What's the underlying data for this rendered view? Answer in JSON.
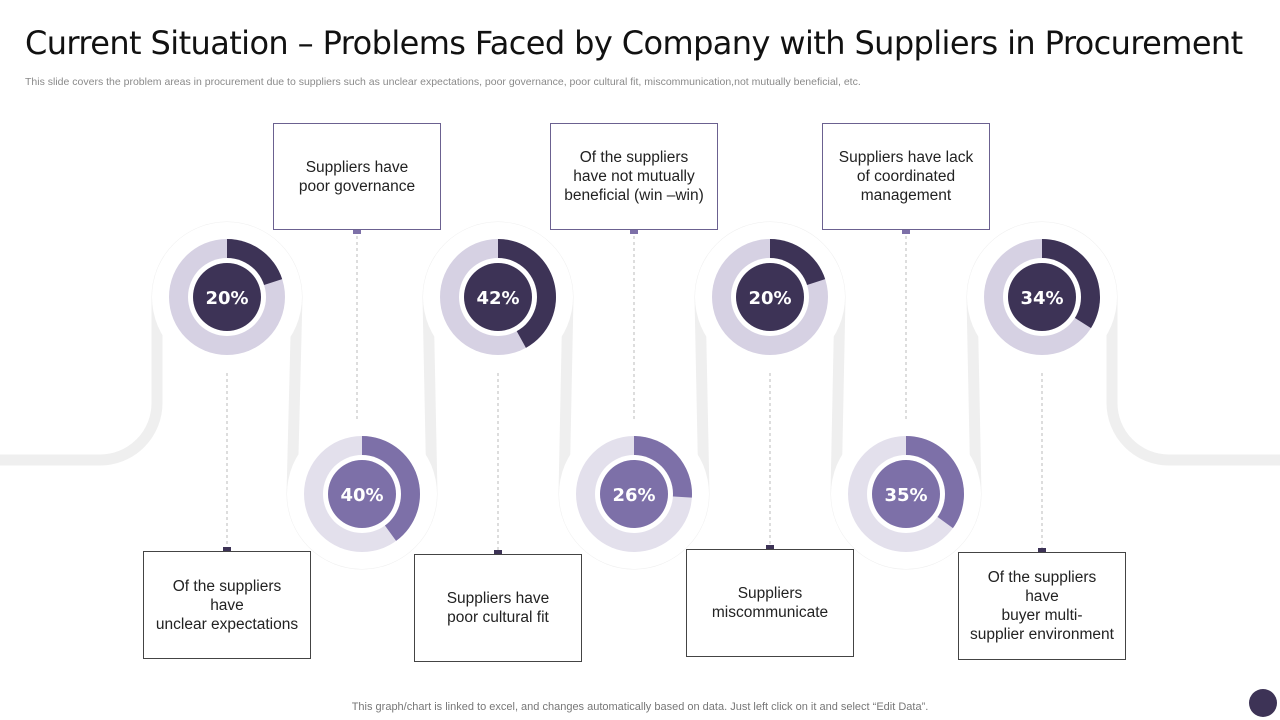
{
  "header": {
    "title": "Current Situation – Problems Faced by Company with Suppliers in Procurement",
    "subtitle": "This slide covers the problem areas in procurement due to suppliers such as unclear expectations, poor governance, poor cultural fit, miscommunication,not mutually beneficial, etc."
  },
  "colors": {
    "dark": "#3d3356",
    "medium": "#7d70a8",
    "light": "#d6d1e3",
    "lighter": "#e3e0ec",
    "track": "#efefef",
    "connector": "#bbbbbb"
  },
  "chart_data": {
    "type": "pie",
    "subtype": "donut",
    "items": [
      {
        "label": "Of the suppliers have unclear expectations",
        "value": 20,
        "display": "20%"
      },
      {
        "label": "Of the suppliers have buyer multi-supplier environment",
        "value": 40,
        "display": "40%"
      },
      {
        "label": "Suppliers have poor governance",
        "value": 42,
        "display": "42%"
      },
      {
        "label": "Suppliers have poor cultural fit",
        "value": 26,
        "display": "26%"
      },
      {
        "label": "Of the suppliers have not mutually beneficial (win –win)",
        "value": 20,
        "display": "20%"
      },
      {
        "label": "Suppliers miscommunicate",
        "value": 35,
        "display": "35%"
      },
      {
        "label": "Suppliers have lack of coordinated management",
        "value": 34,
        "display": "34%"
      }
    ]
  },
  "boxes": {
    "b1": "Suppliers have\npoor governance",
    "b2": "Of the suppliers\nhave not mutually\nbeneficial (win –win)",
    "b3": "Suppliers have lack\nof coordinated\nmanagement",
    "b4": "Of the suppliers have\nunclear expectations",
    "b5": "Suppliers have\npoor cultural fit",
    "b6": "Suppliers\nmiscommunicate",
    "b7": "Of the suppliers have\nbuyer multi-\nsupplier environment"
  },
  "footer": {
    "note": "This graph/chart is linked to excel,  and changes automatically based on data. Just left click on it and select “Edit Data”."
  }
}
